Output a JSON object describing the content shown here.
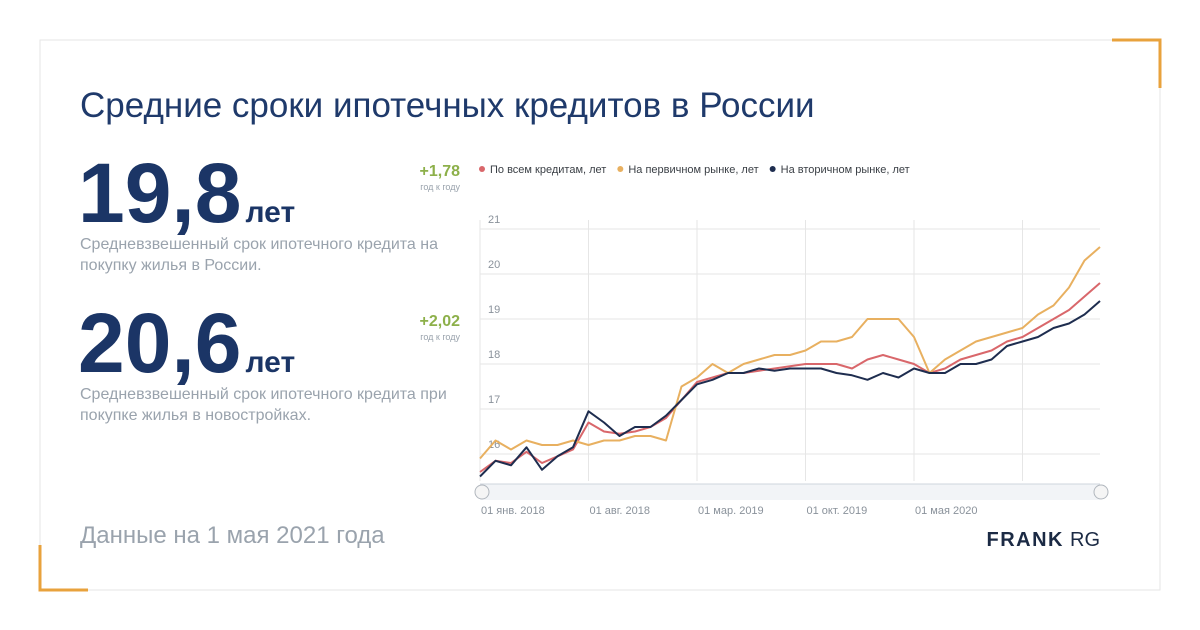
{
  "title": "Средние сроки ипотечных кредитов в России",
  "stats": [
    {
      "value": "19,8",
      "unit": "лет",
      "change": "+1,78",
      "change_note": "год к году",
      "description": [
        "Средневзвешенный срок ипотечного кредита на",
        "покупку жилья в России."
      ]
    },
    {
      "value": "20,6",
      "unit": "лет",
      "change": "+2,02",
      "change_note": "год к году",
      "description": [
        "Средневзвешенный срок ипотечного кредита при",
        "покупке жилья в новостройках."
      ]
    }
  ],
  "footer": "Данные на 1 мая 2021 года",
  "logo": {
    "bold": "FRANK",
    "light": "RG"
  },
  "chart_data": {
    "type": "line",
    "categories": [
      "01 янв. 2018",
      null,
      null,
      null,
      null,
      null,
      null,
      "01 авг. 2018",
      null,
      null,
      null,
      null,
      null,
      null,
      "01 мар. 2019",
      null,
      null,
      null,
      null,
      null,
      null,
      "01 окт. 2019",
      null,
      null,
      null,
      null,
      null,
      null,
      "01 мая 2020",
      null,
      null,
      null,
      null,
      null,
      null,
      null,
      null,
      null,
      null,
      null,
      null
    ],
    "series": [
      {
        "name": "По всем кредитам, лет",
        "color": "#d9676b",
        "values": [
          15.6,
          15.85,
          15.8,
          16.05,
          15.8,
          15.95,
          16.1,
          16.7,
          16.5,
          16.45,
          16.5,
          16.6,
          16.8,
          17.2,
          17.6,
          17.7,
          17.8,
          17.8,
          17.85,
          17.9,
          17.95,
          18.0,
          18.0,
          18.0,
          17.9,
          18.1,
          18.2,
          18.1,
          18.0,
          17.8,
          17.9,
          18.1,
          18.2,
          18.3,
          18.5,
          18.6,
          18.8,
          19.0,
          19.2,
          19.5,
          19.8
        ]
      },
      {
        "name": "На первичном рынке, лет",
        "color": "#e8b060",
        "values": [
          15.9,
          16.3,
          16.1,
          16.3,
          16.2,
          16.2,
          16.3,
          16.2,
          16.3,
          16.3,
          16.4,
          16.4,
          16.3,
          17.5,
          17.7,
          18.0,
          17.8,
          18.0,
          18.1,
          18.2,
          18.2,
          18.3,
          18.5,
          18.5,
          18.6,
          19.0,
          19.0,
          19.0,
          18.6,
          17.8,
          18.1,
          18.3,
          18.5,
          18.6,
          18.7,
          18.8,
          19.1,
          19.3,
          19.7,
          20.3,
          20.6
        ]
      },
      {
        "name": "На вторичном рынке, лет",
        "color": "#1e2d4f",
        "values": [
          15.5,
          15.85,
          15.75,
          16.15,
          15.65,
          15.95,
          16.15,
          16.95,
          16.7,
          16.4,
          16.6,
          16.6,
          16.85,
          17.2,
          17.55,
          17.65,
          17.8,
          17.8,
          17.9,
          17.85,
          17.9,
          17.9,
          17.9,
          17.8,
          17.75,
          17.65,
          17.8,
          17.7,
          17.9,
          17.8,
          17.8,
          18.0,
          18.0,
          18.1,
          18.4,
          18.5,
          18.6,
          18.8,
          18.9,
          19.1,
          19.4
        ]
      }
    ],
    "ylim": [
      15.4,
      21.2
    ],
    "yticks": [
      16,
      17,
      18,
      19,
      20,
      21
    ],
    "grid": true
  }
}
